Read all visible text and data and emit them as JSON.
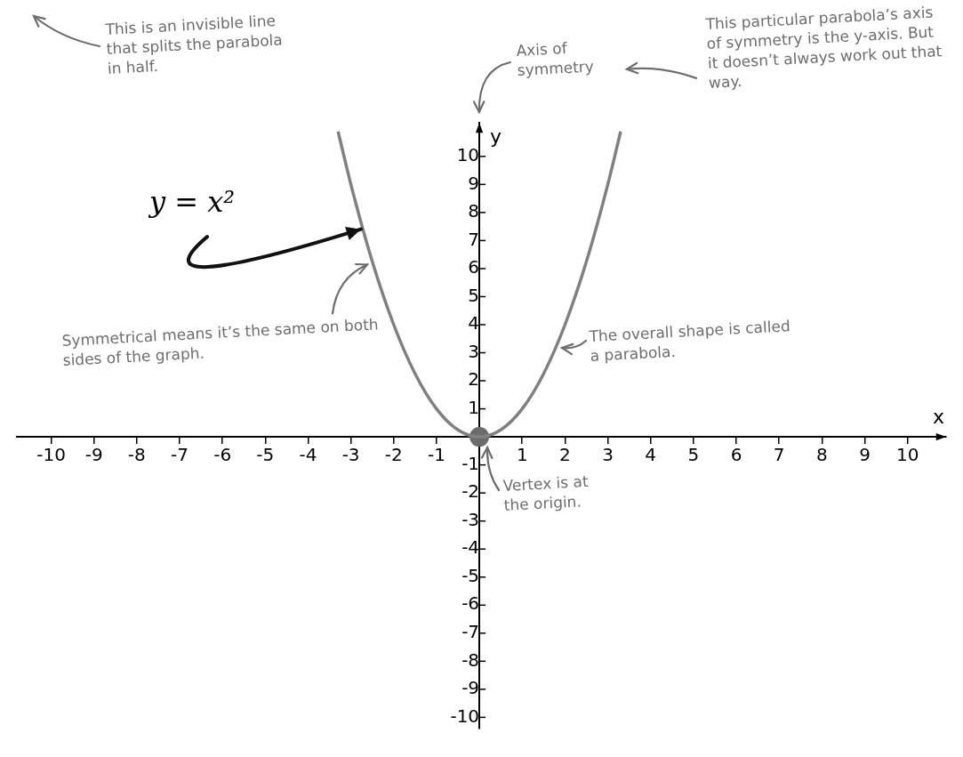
{
  "chart_data": {
    "type": "line",
    "xlabel": "x",
    "ylabel": "y",
    "xlim": [
      -10.8,
      10.9
    ],
    "ylim": [
      -10.4,
      11.2
    ],
    "xticks": [
      -10,
      -9,
      -8,
      -7,
      -6,
      -5,
      -4,
      -3,
      -2,
      -1,
      1,
      2,
      3,
      4,
      5,
      6,
      7,
      8,
      9,
      10
    ],
    "yticks": [
      -10,
      -9,
      -8,
      -7,
      -6,
      -5,
      -4,
      -3,
      -2,
      -1,
      1,
      2,
      3,
      4,
      5,
      6,
      7,
      8,
      9,
      10
    ],
    "grid": false,
    "legend": false,
    "marker": "none",
    "line_style": "solid",
    "series": [
      {
        "name": "y = x²",
        "color": "#808080",
        "x": [
          -3.3,
          -3,
          -2.5,
          -2,
          -1.5,
          -1,
          -0.5,
          0,
          0.5,
          1,
          1.5,
          2,
          2.5,
          3,
          3.3
        ],
        "values": [
          10.89,
          9,
          6.25,
          4,
          2.25,
          1,
          0.25,
          0,
          0.25,
          1,
          2.25,
          4,
          6.25,
          9,
          10.89
        ]
      },
      {
        "type": "scatter",
        "color": "#6b6b6b",
        "marker": "circle",
        "x": [
          0
        ],
        "values": [
          0
        ]
      }
    ],
    "annotations": [
      "This is an invisible line that splits the parabola in half.",
      "Axis of symmetry",
      "This particular parabola’s axis of symmetry is the y-axis. But it doesn’t always work out that way.",
      {
        "text": "Symmetrical means it’s the same on both sides of the graph.",
        "x": -2.5,
        "y": 6.25
      },
      {
        "text": "The overall shape is called a parabola.",
        "x": 1.8,
        "y": 3.24
      },
      {
        "text": "Vertex is at the origin.",
        "x": 0,
        "y": 0
      }
    ]
  }
}
